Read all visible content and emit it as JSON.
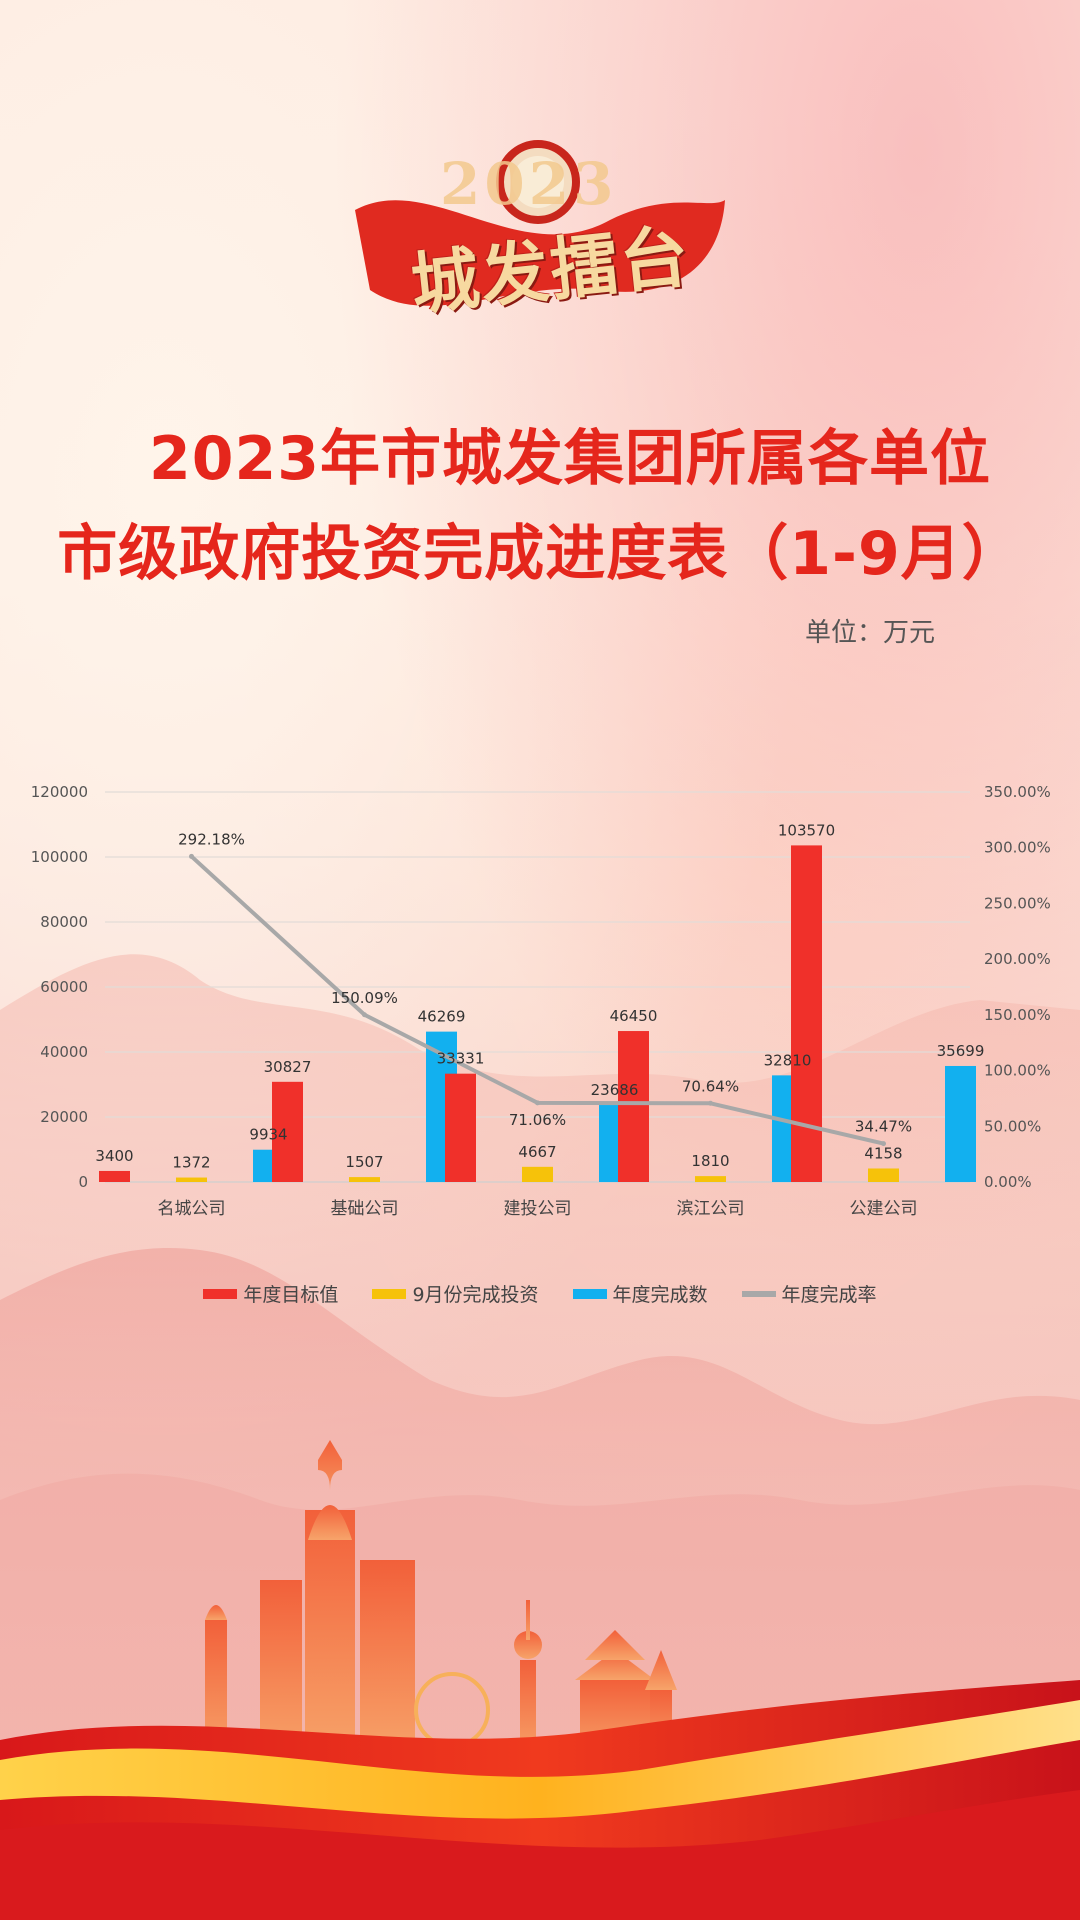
{
  "logo": {
    "year": "2023",
    "name": "城发擂台"
  },
  "title": {
    "line1": "2023年市城发集团所属各单位",
    "line2": "市级政府投资完成进度表（1-9月）"
  },
  "unit_label": "单位：万元",
  "colors": {
    "title": "#e5261c",
    "target": "#f0302a",
    "september": "#f6c20a",
    "completed": "#12b0ef",
    "rate": "#a8a8a8"
  },
  "chart_data": {
    "type": "bar",
    "categories": [
      "名城公司",
      "基础公司",
      "建投公司",
      "滨江公司",
      "公建公司"
    ],
    "series": [
      {
        "name": "年度目标值",
        "kind": "bar",
        "axis": "left",
        "values": [
          3400,
          30827,
          33331,
          46450,
          103570
        ]
      },
      {
        "name": "9月份完成投资",
        "kind": "bar",
        "axis": "left",
        "values": [
          1372,
          1507,
          4667,
          1810,
          4158
        ]
      },
      {
        "name": "年度完成数",
        "kind": "bar",
        "axis": "left",
        "values": [
          9934,
          46269,
          23686,
          32810,
          35699
        ]
      },
      {
        "name": "年度完成率",
        "kind": "line",
        "axis": "right",
        "values": [
          292.18,
          150.09,
          71.06,
          70.64,
          34.47
        ],
        "labels": [
          "292.18%",
          "150.09%",
          "71.06%",
          "70.64%",
          "34.47%"
        ]
      }
    ],
    "y_left": {
      "min": 0,
      "max": 120000,
      "ticks": [
        "0",
        "20000",
        "40000",
        "60000",
        "80000",
        "100000",
        "120000"
      ]
    },
    "y_right": {
      "min": 0,
      "max": 350,
      "ticks": [
        "0.00%",
        "50.00%",
        "100.00%",
        "150.00%",
        "200.00%",
        "250.00%",
        "300.00%",
        "350.00%"
      ]
    },
    "grid": true,
    "legend_position": "bottom"
  }
}
